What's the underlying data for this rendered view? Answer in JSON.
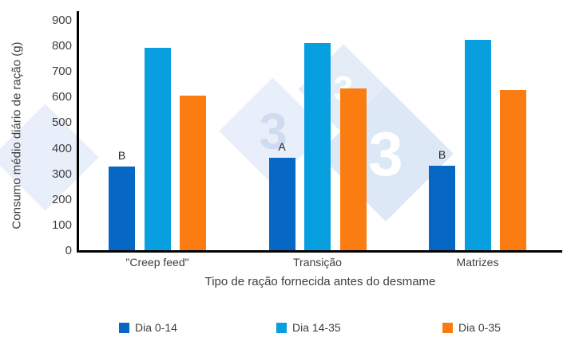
{
  "chart_data": {
    "type": "bar",
    "title": "",
    "ylabel": "Consumo médio diário de ração (g)",
    "xlabel": "Tipo de ração fornecida antes do desmame",
    "ylim": [
      0,
      900
    ],
    "ytick_step": 100,
    "grid": false,
    "legend_position": "bottom",
    "categories": [
      "\"Creep feed\"",
      "Transição",
      "Matrizes"
    ],
    "series": [
      {
        "name": "Dia 0-14",
        "color": "#0667c5",
        "values": [
          330,
          365,
          332
        ],
        "bar_labels": [
          "B",
          "A",
          "B"
        ]
      },
      {
        "name": "Dia 14-35",
        "color": "#079fe0",
        "values": [
          795,
          812,
          824
        ],
        "bar_labels": [
          "",
          "",
          ""
        ]
      },
      {
        "name": "Dia 0-35",
        "color": "#fb7d11",
        "values": [
          606,
          634,
          629
        ],
        "bar_labels": [
          "",
          "",
          ""
        ]
      }
    ]
  },
  "watermark": {
    "digits": [
      "3",
      "3",
      "3"
    ],
    "diamond_color_light": "#e9effa",
    "diamond_color_mid": "#e4ecf8",
    "diamond_color_dark": "#dde8f6",
    "digit_color_pale": "#cfdcf0",
    "digit_color_white": "#ffffff"
  },
  "colors": {
    "axis_line": "#000000",
    "text": "#3e3e3e",
    "background": "#ffffff"
  }
}
